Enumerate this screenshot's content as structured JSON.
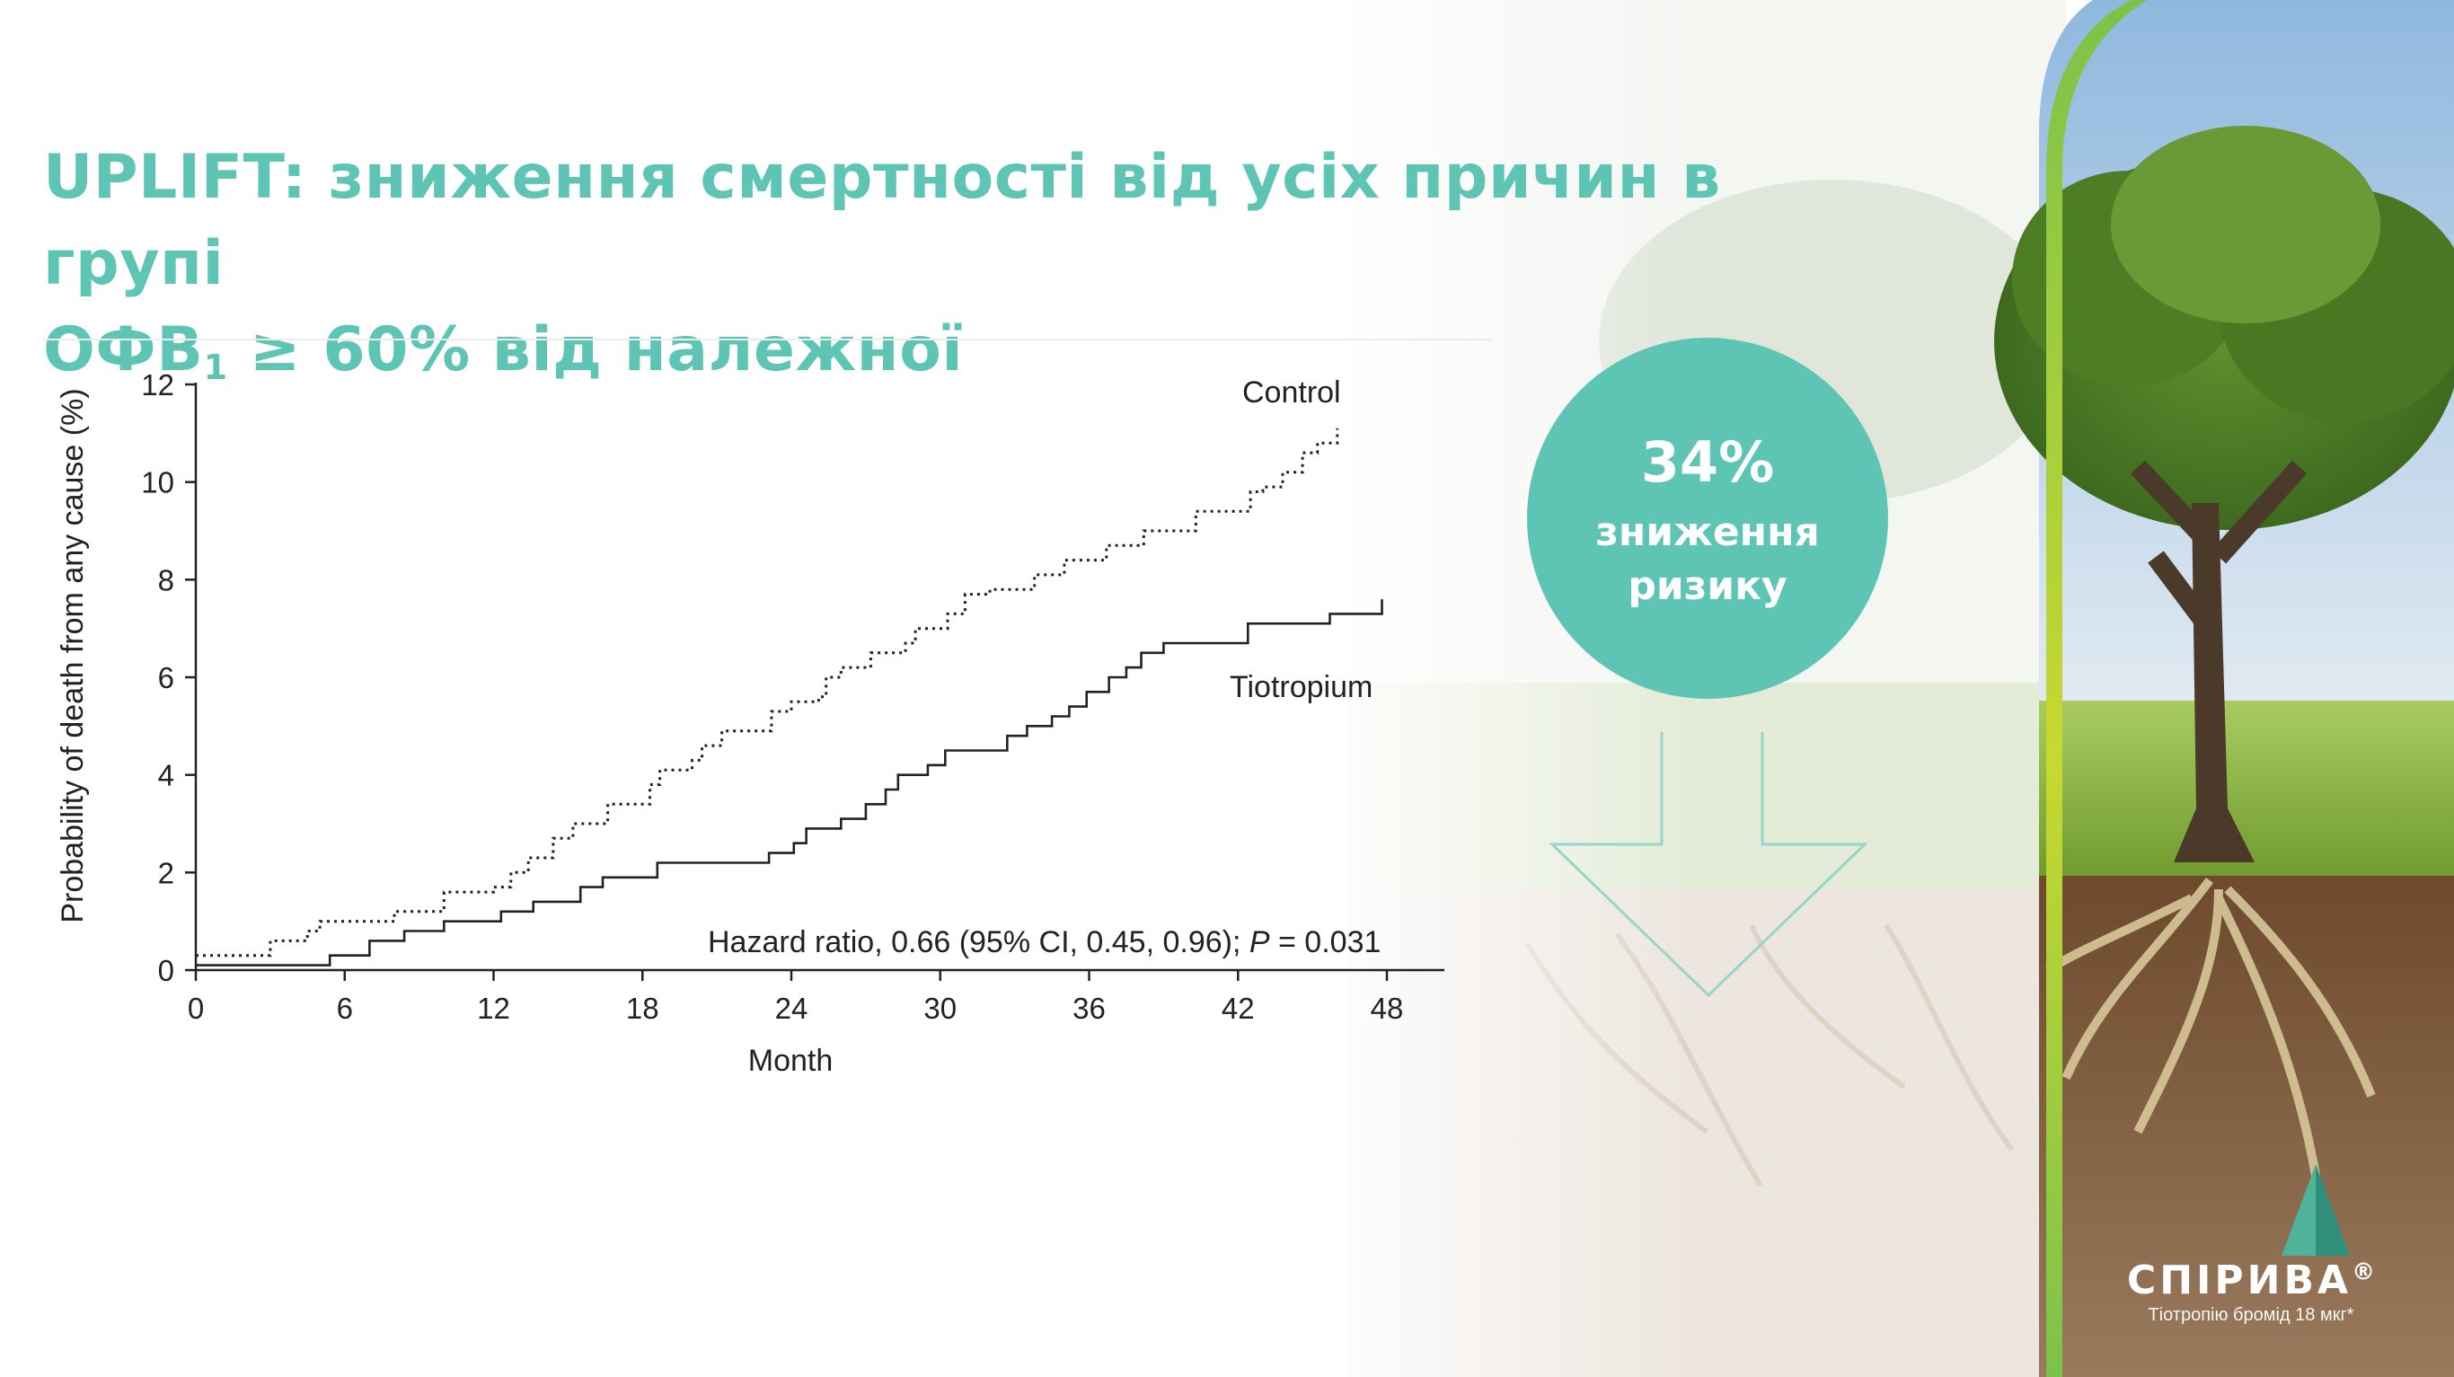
{
  "slide": {
    "title_line1": "UPLIFT: зниження смертності від усіх причин в групі",
    "title_line2_prefix": "ОФВ",
    "title_line2_sub": "1",
    "title_line2_suffix": " ≥ 60% від належної"
  },
  "badge": {
    "percent": "34%",
    "line1": "зниження",
    "line2": "ризику"
  },
  "brand": {
    "name": "СПІРИВА",
    "reg": "®",
    "subtitle": "Тіотропію бромід 18 мкг*"
  },
  "colors": {
    "accent": "#5ec4b4",
    "line": "#222222"
  },
  "chart_data": {
    "type": "line",
    "title": "",
    "xlabel": "Month",
    "ylabel": "Probability of death from any cause (%)",
    "xlim": [
      0,
      48
    ],
    "ylim": [
      0,
      12
    ],
    "xticks": [
      0,
      6,
      12,
      18,
      24,
      30,
      36,
      42,
      48
    ],
    "yticks": [
      0,
      2,
      4,
      6,
      8,
      10,
      12
    ],
    "xtick_labels": [
      "0",
      "6",
      "12",
      "18",
      "24",
      "30",
      "36",
      "42",
      "48"
    ],
    "ytick_labels": [
      "0",
      "2",
      "4",
      "6",
      "8",
      "10",
      "12"
    ],
    "grid": false,
    "step": true,
    "annotation": {
      "prefix": "Hazard ratio, 0.66 (95% CI, 0.45, 0.96); ",
      "p_label": "P",
      "suffix": " = 0.031"
    },
    "series": [
      {
        "name": "Control",
        "style": "dotted",
        "points": [
          [
            0,
            0.3
          ],
          [
            2.8,
            0.3
          ],
          [
            3,
            0.6
          ],
          [
            4.5,
            0.8
          ],
          [
            5,
            1.0
          ],
          [
            7.5,
            1.0
          ],
          [
            8,
            1.2
          ],
          [
            9.5,
            1.2
          ],
          [
            10,
            1.6
          ],
          [
            12,
            1.7
          ],
          [
            12.7,
            2.0
          ],
          [
            13.4,
            2.3
          ],
          [
            14.4,
            2.7
          ],
          [
            15.2,
            3.0
          ],
          [
            16.6,
            3.4
          ],
          [
            18,
            3.4
          ],
          [
            18.3,
            3.8
          ],
          [
            18.7,
            4.1
          ],
          [
            20,
            4.3
          ],
          [
            20.4,
            4.6
          ],
          [
            21.2,
            4.9
          ],
          [
            23,
            4.9
          ],
          [
            23.2,
            5.3
          ],
          [
            24,
            5.5
          ],
          [
            25.1,
            5.6
          ],
          [
            25.4,
            6.0
          ],
          [
            26,
            6.2
          ],
          [
            27.2,
            6.5
          ],
          [
            28.6,
            6.7
          ],
          [
            29,
            7.0
          ],
          [
            30,
            7.0
          ],
          [
            30.3,
            7.3
          ],
          [
            31,
            7.7
          ],
          [
            32,
            7.8
          ],
          [
            33.8,
            8.1
          ],
          [
            35,
            8.4
          ],
          [
            36.7,
            8.7
          ],
          [
            38.2,
            9.0
          ],
          [
            40,
            9.0
          ],
          [
            40.3,
            9.4
          ],
          [
            42,
            9.4
          ],
          [
            42.5,
            9.8
          ],
          [
            43,
            9.9
          ],
          [
            43.8,
            10.2
          ],
          [
            44.6,
            10.6
          ],
          [
            45.2,
            10.8
          ],
          [
            46,
            11.1
          ]
        ]
      },
      {
        "name": "Tiotropium",
        "style": "solid",
        "points": [
          [
            0,
            0.1
          ],
          [
            5,
            0.1
          ],
          [
            5.4,
            0.3
          ],
          [
            7,
            0.6
          ],
          [
            8.4,
            0.8
          ],
          [
            10,
            1.0
          ],
          [
            12,
            1.0
          ],
          [
            12.3,
            1.2
          ],
          [
            13.6,
            1.4
          ],
          [
            15.5,
            1.7
          ],
          [
            16.4,
            1.9
          ],
          [
            18,
            1.9
          ],
          [
            18.6,
            2.2
          ],
          [
            22.5,
            2.2
          ],
          [
            23.1,
            2.4
          ],
          [
            24.1,
            2.6
          ],
          [
            24.6,
            2.9
          ],
          [
            26,
            3.1
          ],
          [
            27,
            3.4
          ],
          [
            27.8,
            3.7
          ],
          [
            28.3,
            4.0
          ],
          [
            29.5,
            4.2
          ],
          [
            30.2,
            4.5
          ],
          [
            32.3,
            4.5
          ],
          [
            32.7,
            4.8
          ],
          [
            33.5,
            5.0
          ],
          [
            34.5,
            5.2
          ],
          [
            35.2,
            5.4
          ],
          [
            35.9,
            5.7
          ],
          [
            36.8,
            6.0
          ],
          [
            37.5,
            6.2
          ],
          [
            38.1,
            6.5
          ],
          [
            39,
            6.7
          ],
          [
            42.1,
            6.7
          ],
          [
            42.4,
            7.1
          ],
          [
            45.4,
            7.1
          ],
          [
            45.7,
            7.3
          ],
          [
            47.6,
            7.3
          ],
          [
            47.8,
            7.6
          ]
        ]
      }
    ]
  }
}
